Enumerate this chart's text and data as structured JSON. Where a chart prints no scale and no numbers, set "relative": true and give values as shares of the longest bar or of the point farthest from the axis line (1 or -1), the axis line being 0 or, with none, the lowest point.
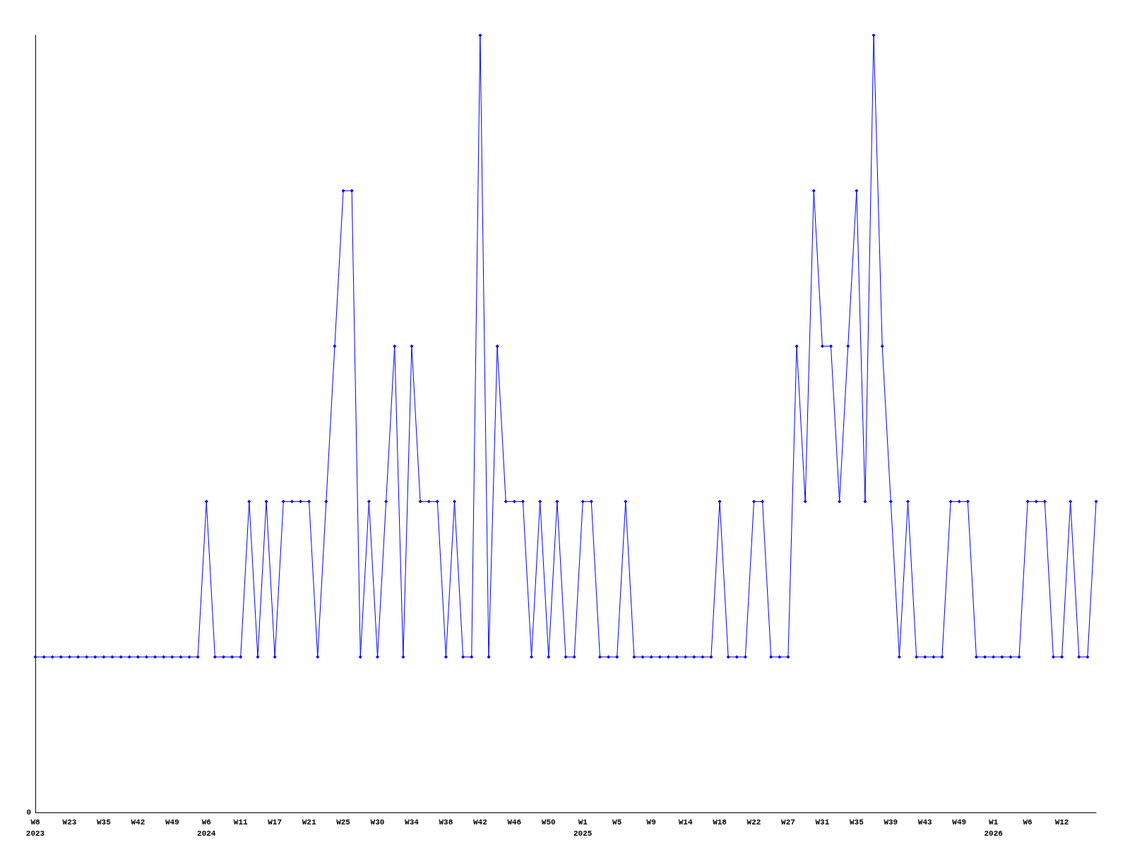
{
  "chart_data": {
    "type": "line",
    "relative": true,
    "marker": "diamond",
    "line_style": "solid",
    "grid": false,
    "categories": [
      "W8\n2023",
      null,
      null,
      null,
      "W23",
      null,
      null,
      null,
      "W35",
      null,
      null,
      null,
      "W42",
      null,
      null,
      null,
      "W49",
      null,
      null,
      null,
      "W6\n2024",
      null,
      null,
      null,
      "W11",
      null,
      null,
      null,
      "W17",
      null,
      null,
      null,
      "W21",
      null,
      null,
      null,
      "W25",
      null,
      null,
      null,
      "W30",
      null,
      null,
      null,
      "W34",
      null,
      null,
      null,
      "W38",
      null,
      null,
      null,
      "W42",
      null,
      null,
      null,
      "W46",
      null,
      null,
      null,
      "W50",
      null,
      null,
      null,
      "W1\n2025",
      null,
      null,
      null,
      "W5",
      null,
      null,
      null,
      "W9",
      null,
      null,
      null,
      "W14",
      null,
      null,
      null,
      "W18",
      null,
      null,
      null,
      "W22",
      null,
      null,
      null,
      "W27",
      null,
      null,
      null,
      "W31",
      null,
      null,
      null,
      "W35",
      null,
      null,
      null,
      "W39",
      null,
      null,
      null,
      "W43",
      null,
      null,
      null,
      "W49",
      null,
      null,
      null,
      "W1\n2026",
      null,
      null,
      null,
      "W6",
      null,
      null,
      null,
      "W12",
      null,
      null,
      null,
      null
    ],
    "series": [
      {
        "color": "#0000ff",
        "values": [
          0.2,
          0.2,
          0.2,
          0.2,
          0.2,
          0.2,
          0.2,
          0.2,
          0.2,
          0.2,
          0.2,
          0.2,
          0.2,
          0.2,
          0.2,
          0.2,
          0.2,
          0.2,
          0.2,
          0.2,
          0.4,
          0.2,
          0.2,
          0.2,
          0.2,
          0.4,
          0.2,
          0.4,
          0.2,
          0.4,
          0.4,
          0.4,
          0.4,
          0.2,
          0.4,
          0.6,
          0.8,
          0.8,
          0.2,
          0.4,
          0.2,
          0.4,
          0.6,
          0.2,
          0.6,
          0.4,
          0.4,
          0.4,
          0.2,
          0.4,
          0.2,
          0.2,
          1,
          0.2,
          0.6,
          0.4,
          0.4,
          0.4,
          0.2,
          0.4,
          0.2,
          0.4,
          0.2,
          0.2,
          0.4,
          0.4,
          0.2,
          0.2,
          0.2,
          0.4,
          0.2,
          0.2,
          0.2,
          0.2,
          0.2,
          0.2,
          0.2,
          0.2,
          0.2,
          0.2,
          0.4,
          0.2,
          0.2,
          0.2,
          0.4,
          0.4,
          0.2,
          0.2,
          0.2,
          0.6,
          0.4,
          0.8,
          0.6,
          0.6,
          0.4,
          0.6,
          0.8,
          0.4,
          1,
          0.6,
          0.4,
          0.2,
          0.4,
          0.2,
          0.2,
          0.2,
          0.2,
          0.4,
          0.4,
          0.4,
          0.2,
          0.2,
          0.2,
          0.2,
          0.2,
          0.2,
          0.4,
          0.4,
          0.4,
          0.2,
          0.2,
          0.4,
          0.2,
          0.2,
          0.4
        ]
      }
    ],
    "annotations": [
      "0"
    ]
  }
}
